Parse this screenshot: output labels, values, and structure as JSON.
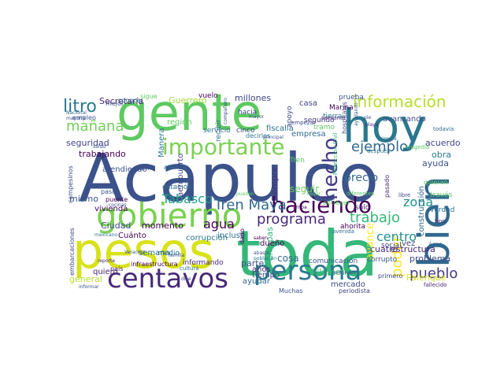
{
  "words": [
    {
      "text": "Acapulco",
      "color": "#3b528b"
    },
    {
      "text": "gente",
      "color": "#5ec962"
    },
    {
      "text": "pesos",
      "color": "#d8e219"
    },
    {
      "text": "toda",
      "color": "#35b779"
    },
    {
      "text": "hoy",
      "color": "#2a788e"
    },
    {
      "text": "bien",
      "color": "#31688e"
    },
    {
      "text": "gobierno",
      "color": "#7ad151"
    },
    {
      "text": "centavos",
      "color": "#482878"
    },
    {
      "text": "persona",
      "color": "#2a788e"
    },
    {
      "text": "importante",
      "color": "#7ad151"
    },
    {
      "text": "haciendo",
      "color": "#440154"
    },
    {
      "text": "hecho",
      "color": "#443983"
    },
    {
      "text": "información",
      "color": "#b5de2b"
    },
    {
      "text": "litro",
      "color": "#2a788e"
    },
    {
      "text": "mañana",
      "color": "#6ece58"
    },
    {
      "text": "Tren Maya",
      "color": "#31688e"
    },
    {
      "text": "programa",
      "color": "#482878"
    },
    {
      "text": "trabajo",
      "color": "#35b779"
    },
    {
      "text": "ejemplo",
      "color": "#31688e"
    },
    {
      "text": "poder",
      "color": "#fde725"
    },
    {
      "text": "pueblo",
      "color": "#443983"
    },
    {
      "text": "centro",
      "color": "#21918c"
    },
    {
      "text": "agua",
      "color": "#440154"
    },
    {
      "text": "zona",
      "color": "#21918c"
    },
    {
      "text": "Tabasco",
      "color": "#1f9e89"
    },
    {
      "text": "general",
      "color": "#b5de2b"
    },
    {
      "text": "precio",
      "color": "#31688e"
    },
    {
      "text": "seguridad",
      "color": "#414487"
    },
    {
      "text": "Chiapas",
      "color": "#35b779"
    },
    {
      "text": "Guerrero",
      "color": "#a0da39"
    },
    {
      "text": "millones",
      "color": "#414487"
    },
    {
      "text": "ayuda",
      "color": "#3b528b"
    },
    {
      "text": "Secretaría",
      "color": "#482878"
    },
    {
      "text": "avance",
      "color": "#fde725"
    },
    {
      "text": "problema",
      "color": "#3e4989"
    },
    {
      "text": "trabajando",
      "color": "#440154"
    },
    {
      "text": "seguir",
      "color": "#6ece58"
    },
    {
      "text": "Ciudad",
      "color": "#3e4989"
    },
    {
      "text": "momento",
      "color": "#440154"
    },
    {
      "text": "mismo",
      "color": "#3b528b"
    },
    {
      "text": "estructura",
      "color": "#482878"
    },
    {
      "text": "fiscalía",
      "color": "#2c728e"
    },
    {
      "text": "empresa",
      "color": "#31688e"
    },
    {
      "text": "cuatro",
      "color": "#472d7b"
    },
    {
      "text": "obra",
      "color": "#2a788e"
    },
    {
      "text": "kilómetro",
      "color": "#35b779"
    },
    {
      "text": "siempre",
      "color": "#472d7b"
    },
    {
      "text": "dueño",
      "color": "#440154"
    },
    {
      "text": "cosa",
      "color": "#31688e"
    },
    {
      "text": "parte",
      "color": "#3b528b"
    },
    {
      "text": "incluso",
      "color": "#2c728e"
    },
    {
      "text": "Palenque",
      "color": "#d8e219"
    },
    {
      "text": "mercado",
      "color": "#3e4989"
    },
    {
      "text": "acuerdo",
      "color": "#414487"
    },
    {
      "text": "construcción",
      "color": "#31688e"
    },
    {
      "text": "región",
      "color": "#5ec962"
    },
    {
      "text": "servicio",
      "color": "#2c728e"
    },
    {
      "text": "atendiendo",
      "color": "#3b528b"
    },
    {
      "text": "estación",
      "color": "#31688e"
    },
    {
      "text": "vivienda",
      "color": "#440154"
    },
    {
      "text": "corrupción",
      "color": "#2a788e"
    },
    {
      "text": "semana",
      "color": "#2c728e"
    },
    {
      "text": "años",
      "color": "#472d7b"
    },
    {
      "text": "tiempo",
      "color": "#3e4989"
    },
    {
      "text": "quiero",
      "color": "#482878"
    },
    {
      "text": "vez",
      "color": "#3e4989"
    },
    {
      "text": "segundo",
      "color": "#443983"
    },
    {
      "text": "avanzando",
      "color": "#3b528b"
    },
    {
      "text": "casa",
      "color": "#414487"
    },
    {
      "text": "tierra",
      "color": "#2c728e"
    },
    {
      "text": "Marina",
      "color": "#440154"
    },
    {
      "text": "prueba",
      "color": "#3b528b"
    },
    {
      "text": "vuelo",
      "color": "#440154"
    },
    {
      "text": "Manera",
      "color": "#2a788e"
    },
    {
      "text": "Cuánto",
      "color": "#440154"
    },
    {
      "text": "medio",
      "color": "#2c728e"
    },
    {
      "text": "informando",
      "color": "#482878"
    },
    {
      "text": "ayudar",
      "color": "#31688e"
    },
    {
      "text": "comunicación",
      "color": "#3b528b"
    },
    {
      "text": "corrupto",
      "color": "#3b528b"
    },
    {
      "text": "cinco",
      "color": "#3e4989"
    },
    {
      "text": "conocer",
      "color": "#2c728e"
    },
    {
      "text": "mejor",
      "color": "#3b528b"
    },
    {
      "text": "hacia",
      "color": "#3e4989"
    },
    {
      "text": "apoyo",
      "color": "#3e4989"
    },
    {
      "text": "tramo",
      "color": "#5ec962"
    },
    {
      "text": "solo",
      "color": "#482878"
    },
    {
      "text": "ahorita",
      "color": "#440154"
    },
    {
      "text": "social",
      "color": "#414487"
    },
    {
      "text": "verdad",
      "color": "#2c728e"
    },
    {
      "text": "país",
      "color": "#482878"
    },
    {
      "text": "paso",
      "color": "#3b528b"
    },
    {
      "text": "todavía",
      "color": "#31688e"
    },
    {
      "text": "atender",
      "color": "#31688e"
    },
    {
      "text": "cultura",
      "color": "#2c728e"
    },
    {
      "text": "infraestructura",
      "color": "#440154"
    },
    {
      "text": "Muchas",
      "color": "#3b528b"
    },
    {
      "text": "periodista",
      "color": "#414487"
    },
    {
      "text": "primero",
      "color": "#3e4989"
    },
    {
      "text": "embarcaciones",
      "color": "#3e4989"
    },
    {
      "text": "campesinos",
      "color": "#3b528b"
    },
    {
      "text": "aeropuerto",
      "color": "#414487"
    },
    {
      "text": "sigue",
      "color": "#5ec962"
    },
    {
      "text": "empleo",
      "color": "#3b528b"
    },
    {
      "text": "mayoría",
      "color": "#3b528b"
    },
    {
      "text": "Nacional",
      "color": "#31688e"
    },
    {
      "text": "pasado",
      "color": "#482878"
    },
    {
      "text": "libre",
      "color": "#414487"
    },
    {
      "text": "tipo",
      "color": "#482878"
    },
    {
      "text": "través",
      "color": "#5ec962"
    },
    {
      "text": "área",
      "color": "#31688e"
    },
    {
      "text": "fallecido",
      "color": "#482878"
    },
    {
      "text": "recibir",
      "color": "#2c728e"
    },
    {
      "text": "plan",
      "color": "#3b528b"
    },
    {
      "text": "empezar",
      "color": "#3e4989"
    },
    {
      "text": "personal",
      "color": "#482878"
    },
    {
      "text": "mayor",
      "color": "#3b528b"
    },
    {
      "text": "decirles",
      "color": "#2a788e"
    },
    {
      "text": "compañero",
      "color": "#3b528b"
    },
    {
      "text": "Protección Civil",
      "color": "#35b779"
    },
    {
      "text": "hospitales",
      "color": "#3e4989"
    },
    {
      "text": "ayudando",
      "color": "#3b528b"
    },
    {
      "text": "playa",
      "color": "#482878"
    },
    {
      "text": "pie",
      "color": "#3e4989"
    },
    {
      "text": "primera",
      "color": "#31688e"
    },
    {
      "text": "después",
      "color": "#2a788e"
    },
    {
      "text": "tragedia",
      "color": "#5ec962"
    },
    {
      "text": "quieran",
      "color": "#5ec962"
    },
    {
      "text": "salud",
      "color": "#3b528b"
    },
    {
      "text": "puente",
      "color": "#440154"
    },
    {
      "text": "mexicano",
      "color": "#2c728e"
    },
    {
      "text": "Veracruz",
      "color": "#3b528b"
    },
    {
      "text": "reporte",
      "color": "#482878"
    },
    {
      "text": "familia",
      "color": "#3b528b"
    },
    {
      "text": "población",
      "color": "#2a788e"
    },
    {
      "text": "abasto",
      "color": "#3b528b"
    },
    {
      "text": "saben",
      "color": "#440154"
    },
    {
      "text": "arriba",
      "color": "#440154"
    },
    {
      "text": "entregar",
      "color": "#5ec962"
    },
    {
      "text": "diferentes",
      "color": "#5ec962"
    },
    {
      "text": "llegar",
      "color": "#5ec962"
    },
    {
      "text": "principal",
      "color": "#3b528b"
    },
    {
      "text": "avenida",
      "color": "#31688e"
    },
    {
      "text": "entonces",
      "color": "#3b528b"
    },
    {
      "text": "pueden",
      "color": "#5ec962"
    },
    {
      "text": "informar",
      "color": "#3b528b"
    },
    {
      "text": "cocinas",
      "color": "#3e4989"
    },
    {
      "text": "dado",
      "color": "#440154"
    },
    {
      "text": "dice",
      "color": "#3e4989"
    },
    {
      "text": "Tren",
      "color": "#5ec962"
    }
  ]
}
